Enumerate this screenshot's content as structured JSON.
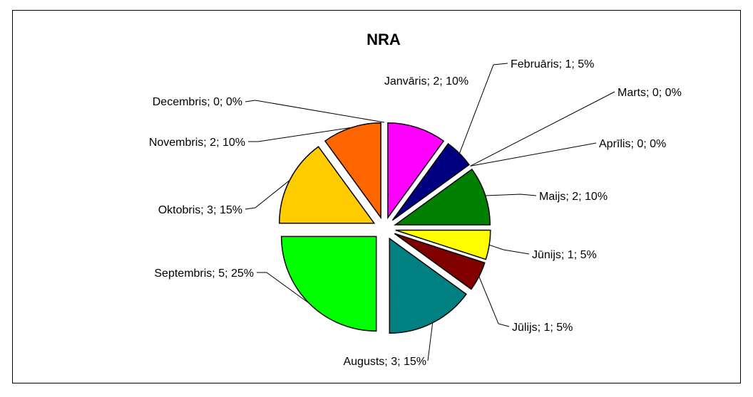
{
  "chart_data": {
    "type": "pie",
    "title": "NRA",
    "label_format": "{category}; {value}; {percent}",
    "slices": [
      {
        "category": "Janvāris",
        "value": 2,
        "percent": "10%",
        "color": "#FF00FF"
      },
      {
        "category": "Februāris",
        "value": 1,
        "percent": "5%",
        "color": "#000080"
      },
      {
        "category": "Marts",
        "value": 0,
        "percent": "0%",
        "color": "#0000FF"
      },
      {
        "category": "Aprīlis",
        "value": 0,
        "percent": "0%",
        "color": "#00FFFF"
      },
      {
        "category": "Maijs",
        "value": 2,
        "percent": "10%",
        "color": "#008000"
      },
      {
        "category": "Jūnijs",
        "value": 1,
        "percent": "5%",
        "color": "#FFFF00"
      },
      {
        "category": "Jūlijs",
        "value": 1,
        "percent": "5%",
        "color": "#800000"
      },
      {
        "category": "Augusts",
        "value": 3,
        "percent": "15%",
        "color": "#008080"
      },
      {
        "category": "Septembris",
        "value": 5,
        "percent": "25%",
        "color": "#00FF00"
      },
      {
        "category": "Oktobris",
        "value": 3,
        "percent": "15%",
        "color": "#FFCC00"
      },
      {
        "category": "Novembris",
        "value": 2,
        "percent": "10%",
        "color": "#FF6600"
      },
      {
        "category": "Decembris",
        "value": 0,
        "percent": "0%",
        "color": "#FF0000"
      }
    ],
    "exploded": true,
    "legend": "none"
  }
}
